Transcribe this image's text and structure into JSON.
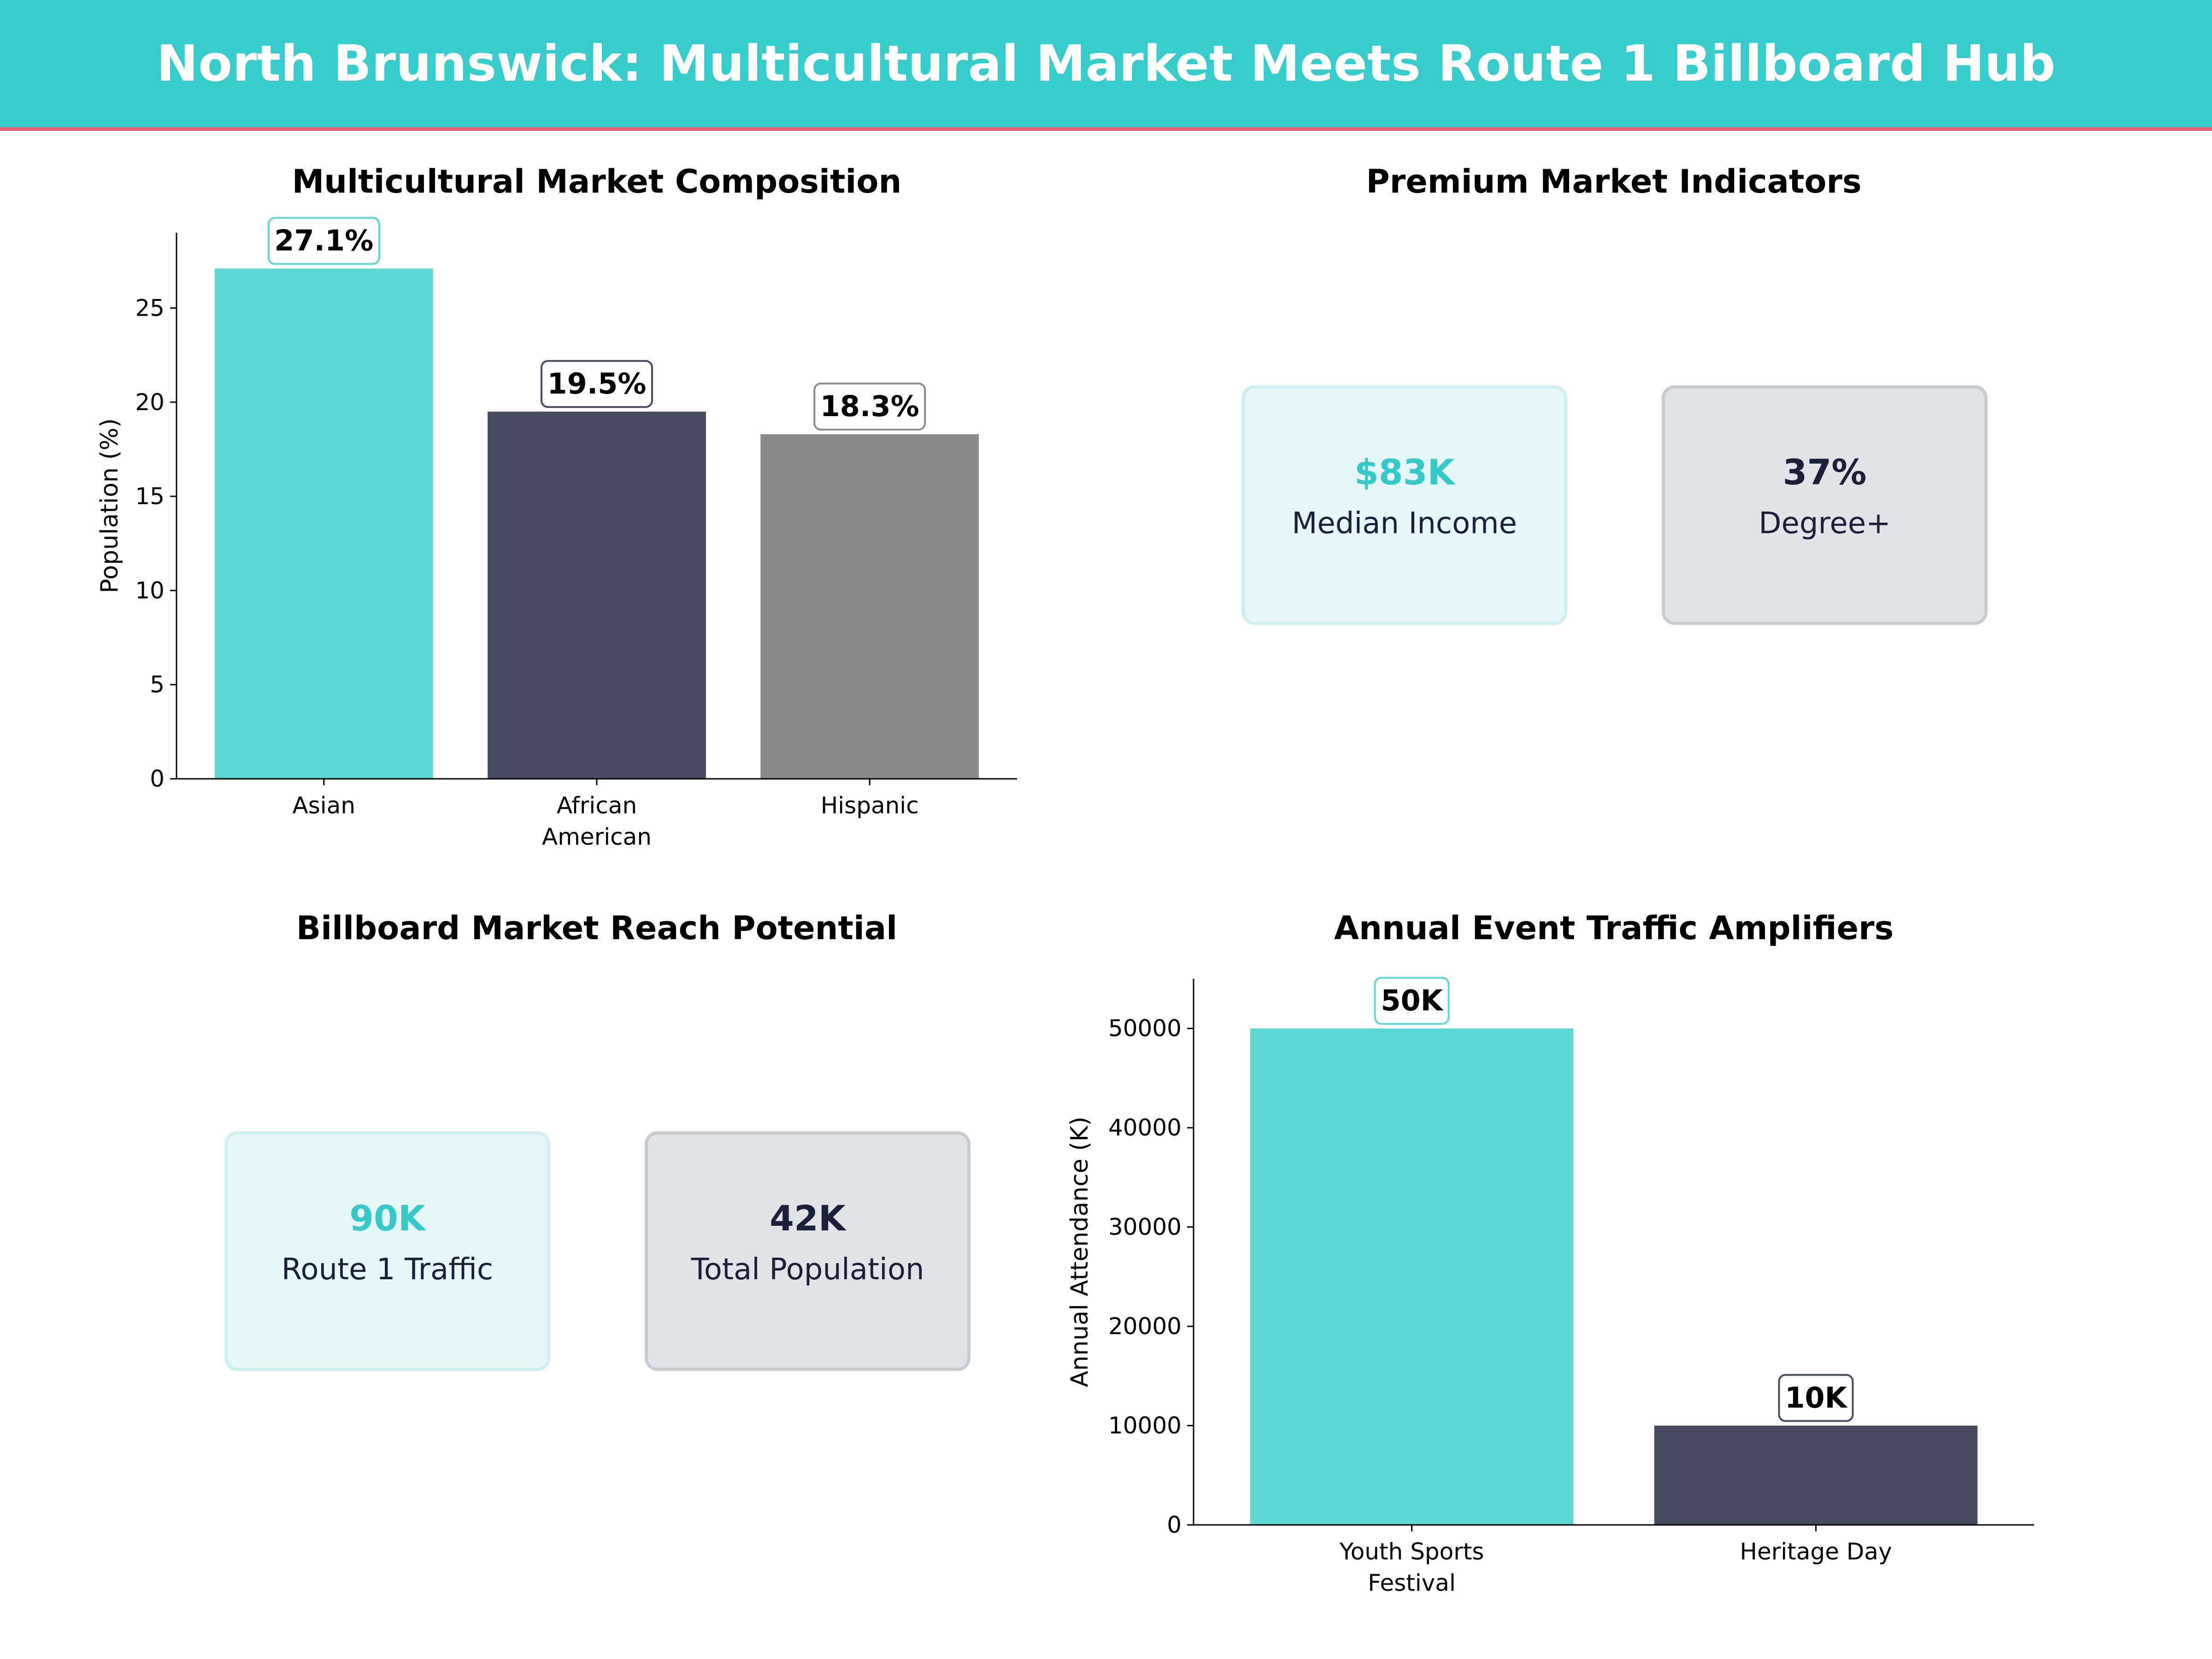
{
  "title": "North Brunswick: Multicultural Market Meets Route 1 Billboard Hub",
  "colors": {
    "header": "#36CCCC",
    "accent_line": "#E8607A",
    "teal": "#5DD8D5",
    "navy": "#464B61",
    "gray": "#8A8A8A",
    "teal_text": "#36C9C9",
    "navy_text": "#1A1F3A"
  },
  "premium": {
    "title": "Premium Market Indicators",
    "cards": [
      {
        "value": "$83K",
        "label": "Median Income"
      },
      {
        "value": "37%",
        "label": "Degree+"
      }
    ]
  },
  "billboard": {
    "title": "Billboard Market Reach Potential",
    "cards": [
      {
        "value": "90K",
        "label": "Route 1 Traffic"
      },
      {
        "value": "42K",
        "label": "Total Population"
      }
    ]
  },
  "chart_data": [
    {
      "type": "bar",
      "title": "Multicultural Market Composition",
      "xlabel": "",
      "ylabel": "Population (%)",
      "categories": [
        "Asian",
        "African\nAmerican",
        "Hispanic"
      ],
      "values": [
        27.1,
        19.5,
        18.3
      ],
      "data_labels": [
        "27.1%",
        "19.5%",
        "18.3%"
      ],
      "colors": [
        "#5DD8D5",
        "#464B61",
        "#8A8A8A"
      ],
      "ylim": [
        0,
        29
      ],
      "yticks": [
        0,
        5,
        10,
        15,
        20,
        25
      ],
      "grid": false
    },
    {
      "type": "bar",
      "title": "Annual Event Traffic Amplifiers",
      "xlabel": "",
      "ylabel": "Annual Attendance (K)",
      "categories": [
        "Youth Sports\nFestival",
        "Heritage Day"
      ],
      "values": [
        50000,
        10000
      ],
      "data_labels": [
        "50K",
        "10K"
      ],
      "colors": [
        "#5DD8D5",
        "#464B61"
      ],
      "ylim": [
        0,
        55000
      ],
      "yticks": [
        0,
        10000,
        20000,
        30000,
        40000,
        50000
      ],
      "grid": false
    }
  ]
}
